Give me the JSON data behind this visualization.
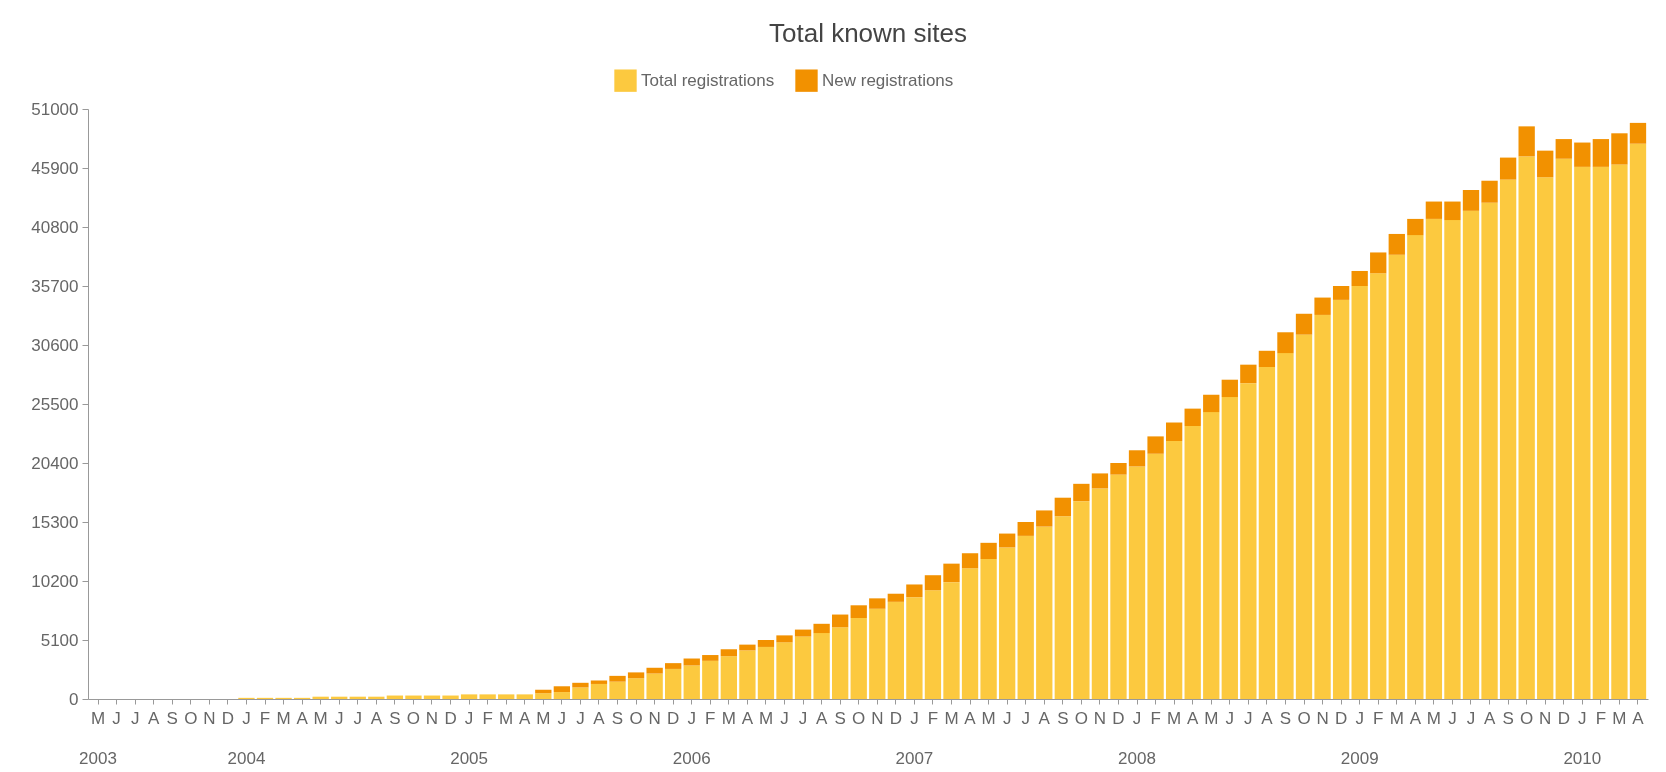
{
  "chart_data": {
    "type": "bar",
    "title": "Total known sites",
    "stacked": true,
    "legend": "top",
    "categories": [
      "M\n2003",
      "J",
      "J",
      "A",
      "S",
      "O",
      "N",
      "D",
      "J\n2004",
      "F",
      "M",
      "A",
      "M",
      "J",
      "J",
      "A",
      "S",
      "O",
      "N",
      "D",
      "J\n2005",
      "F",
      "M",
      "A",
      "M",
      "J",
      "J",
      "A",
      "S",
      "O",
      "N",
      "D",
      "J\n2006",
      "F",
      "M",
      "A",
      "M",
      "J",
      "J",
      "A",
      "S",
      "O",
      "N",
      "D",
      "J\n2007",
      "F",
      "M",
      "A",
      "M",
      "J",
      "J",
      "A",
      "S",
      "O",
      "N",
      "D",
      "J\n2008",
      "F",
      "M",
      "A",
      "M",
      "J",
      "J",
      "A",
      "S",
      "O",
      "N",
      "D",
      "J\n2009",
      "F",
      "M",
      "A",
      "M",
      "J",
      "J",
      "A",
      "S",
      "O",
      "N",
      "D",
      "J\n2010",
      "F",
      "M",
      "A"
    ],
    "ylim": [
      0,
      51000
    ],
    "yticks": [
      0,
      5100,
      10200,
      15300,
      20400,
      25500,
      30600,
      35700,
      40800,
      45900,
      51000
    ],
    "series": [
      {
        "name": "Total registrations",
        "color": "#fcc93f",
        "values": [
          0,
          0,
          0,
          0,
          0,
          0,
          0,
          0,
          100,
          100,
          100,
          100,
          200,
          200,
          200,
          200,
          300,
          300,
          300,
          300,
          400,
          400,
          400,
          400,
          500,
          600,
          1000,
          1300,
          1500,
          1800,
          2200,
          2600,
          2900,
          3300,
          3700,
          4200,
          4500,
          4900,
          5400,
          5700,
          6200,
          7000,
          7800,
          8400,
          8800,
          9400,
          10100,
          11300,
          12100,
          13100,
          14100,
          14900,
          15800,
          17100,
          18200,
          19400,
          20100,
          21200,
          22300,
          23600,
          24800,
          26100,
          27300,
          28700,
          29900,
          31500,
          33200,
          34500,
          35700,
          36800,
          38400,
          40100,
          41500,
          41400,
          42200,
          42900,
          44900,
          46900,
          45100,
          46700,
          46000,
          46000,
          46200,
          48000
        ]
      },
      {
        "name": "New registrations",
        "color": "#f29100",
        "values": [
          0,
          0,
          0,
          0,
          0,
          0,
          0,
          0,
          0,
          0,
          0,
          0,
          0,
          0,
          0,
          0,
          0,
          0,
          0,
          0,
          0,
          0,
          0,
          0,
          300,
          500,
          400,
          300,
          500,
          500,
          500,
          500,
          600,
          500,
          600,
          500,
          600,
          600,
          600,
          800,
          1100,
          1100,
          900,
          700,
          1100,
          1300,
          1600,
          1300,
          1400,
          1200,
          1200,
          1400,
          1600,
          1500,
          1300,
          1000,
          1400,
          1500,
          1600,
          1500,
          1500,
          1500,
          1600,
          1400,
          1800,
          1800,
          1500,
          1200,
          1300,
          1800,
          1800,
          1400,
          1500,
          1600,
          1800,
          1900,
          1900,
          2600,
          2300,
          1700,
          2100,
          2400,
          2700,
          1800
        ]
      }
    ]
  }
}
